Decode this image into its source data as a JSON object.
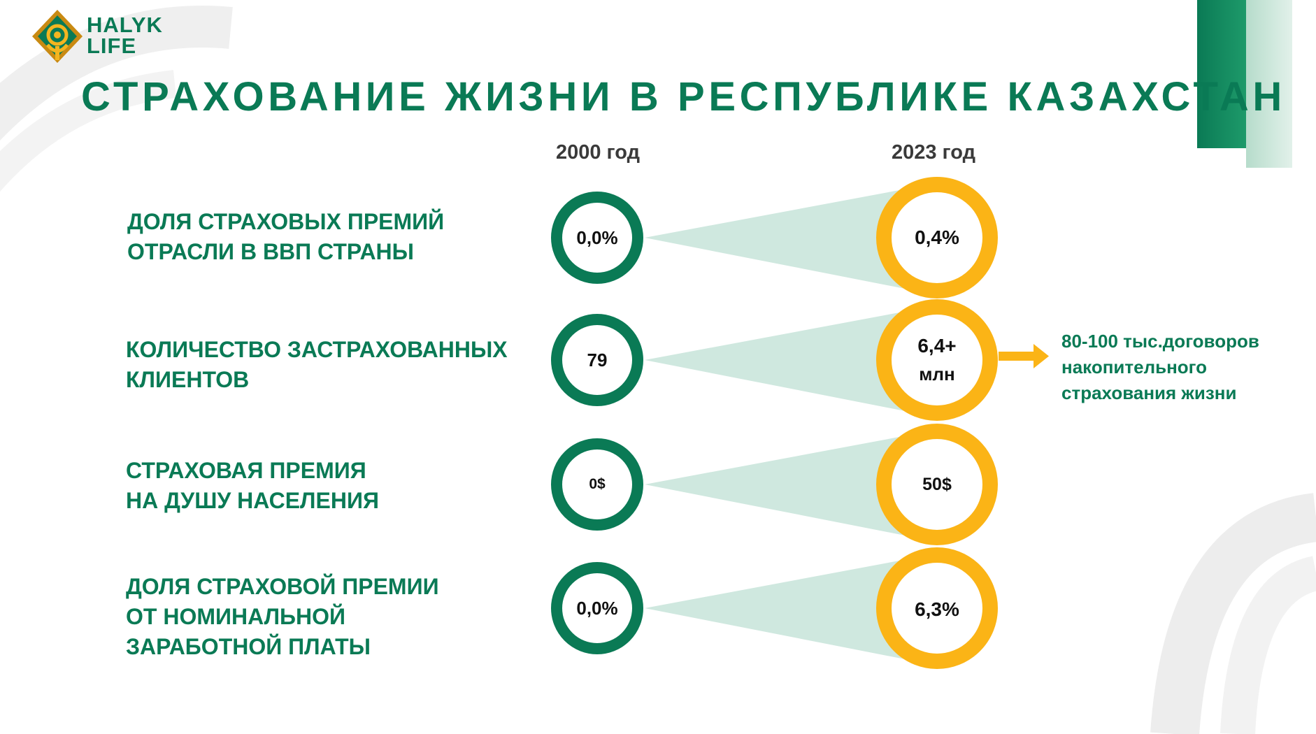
{
  "brand": {
    "name_line1": "HALYK",
    "name_line2": "LIFE"
  },
  "title": "СТРАХОВАНИЕ ЖИЗНИ В РЕСПУБЛИКЕ КАЗАХСТАН",
  "columns": {
    "left_year": "2000 год",
    "right_year": "2023 год"
  },
  "rows": [
    {
      "label_lines": [
        "ДОЛЯ СТРАХОВЫХ ПРЕМИЙ",
        "ОТРАСЛИ В ВВП СТРАНЫ"
      ],
      "value_2000": "0,0%",
      "value_2023": [
        "0,4%"
      ]
    },
    {
      "label_lines": [
        "КОЛИЧЕСТВО ЗАСТРАХОВАННЫХ",
        "КЛИЕНТОВ"
      ],
      "value_2000": "79",
      "value_2023": [
        "6,4+",
        "млн"
      ]
    },
    {
      "label_lines": [
        "СТРАХОВАЯ ПРЕМИЯ",
        "НА ДУШУ НАСЕЛЕНИЯ"
      ],
      "value_2000": "0$",
      "value_2023": [
        "50$"
      ]
    },
    {
      "label_lines": [
        "ДОЛЯ СТРАХОВОЙ ПРЕМИИ",
        "ОТ НОМИНАЛЬНОЙ",
        "ЗАРАБОТНОЙ ПЛАТЫ"
      ],
      "value_2000": "0,0%",
      "value_2023": [
        "6,3%"
      ]
    }
  ],
  "note": {
    "lines": [
      "80-100 тыс.договоров",
      "накопительного",
      "страхования жизни"
    ]
  },
  "colors": {
    "green": "#0a7a55",
    "gold": "#fbb416",
    "cone": "#cfe8df",
    "text_dark": "#111111"
  },
  "icons": {
    "arrow": "arrow-right-icon",
    "logo": "halyk-emblem-icon"
  }
}
